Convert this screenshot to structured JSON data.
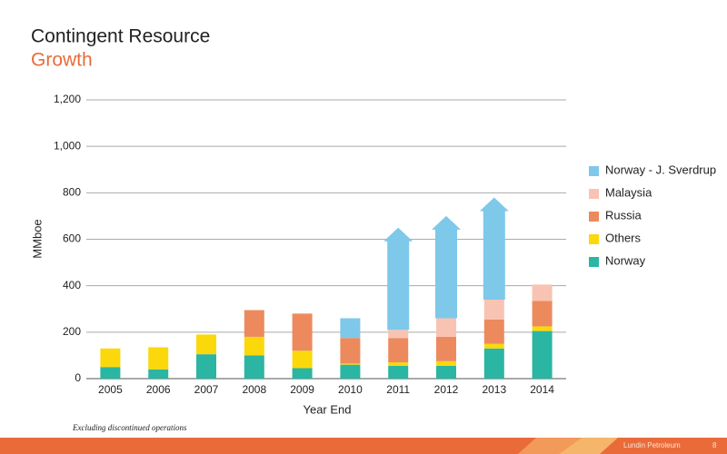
{
  "title": "Contingent Resource",
  "subtitle": "Growth",
  "footnote": "Excluding discontinued operations",
  "footer": {
    "company": "Lundin Petroleum",
    "page": "8"
  },
  "chart_data": {
    "type": "stacked_bar",
    "y_label": "MMboe",
    "x_label": "Year End",
    "categories": [
      "2005",
      "2006",
      "2007",
      "2008",
      "2009",
      "2010",
      "2011",
      "2012",
      "2013",
      "2014"
    ],
    "series": [
      {
        "name": "Norway",
        "color": "#2bb5a3",
        "values": [
          50,
          40,
          105,
          100,
          45,
          60,
          55,
          55,
          130,
          205
        ]
      },
      {
        "name": "Others",
        "color": "#fbd80c",
        "values": [
          80,
          95,
          85,
          80,
          75,
          5,
          15,
          20,
          20,
          20
        ]
      },
      {
        "name": "Russia",
        "color": "#ec8a5e",
        "values": [
          0,
          0,
          0,
          115,
          160,
          110,
          105,
          105,
          105,
          110
        ]
      },
      {
        "name": "Malaysia",
        "color": "#f8c3b3",
        "values": [
          0,
          0,
          0,
          0,
          0,
          0,
          35,
          80,
          85,
          70
        ]
      },
      {
        "name": "Norway - J. Sverdrup",
        "color": "#7ec8ea",
        "values": [
          0,
          0,
          0,
          0,
          0,
          85,
          440,
          440,
          440,
          0
        ],
        "arrows": [
          false,
          false,
          false,
          false,
          false,
          false,
          true,
          true,
          true,
          false
        ]
      }
    ],
    "ylim": [
      0,
      1200
    ],
    "yticks": [
      0,
      200,
      400,
      600,
      800,
      {
        "value": 1000,
        "label": "1,000"
      },
      {
        "value": 1200,
        "label": "1,200"
      }
    ],
    "grid": true,
    "legend": "right"
  }
}
